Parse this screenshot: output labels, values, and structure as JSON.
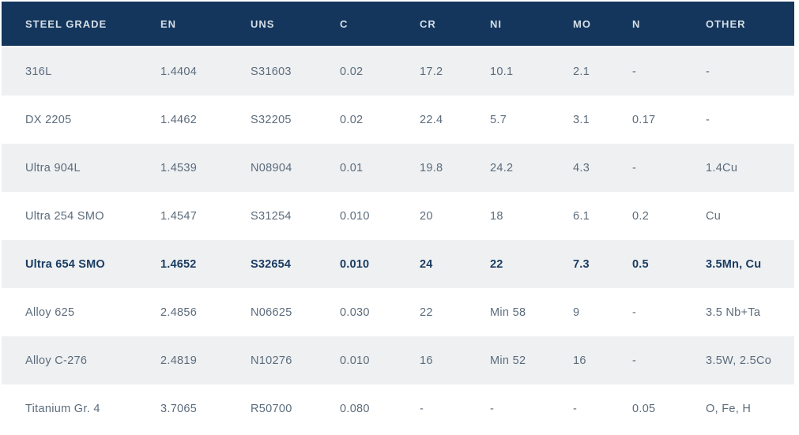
{
  "table": {
    "columns": [
      "STEEL GRADE",
      "EN",
      "UNS",
      "C",
      "CR",
      "NI",
      "MO",
      "N",
      "OTHER"
    ],
    "rows": [
      {
        "bold": false,
        "cells": [
          "316L",
          "1.4404",
          "S31603",
          "0.02",
          "17.2",
          "10.1",
          "2.1",
          "-",
          "-"
        ]
      },
      {
        "bold": false,
        "cells": [
          "DX 2205",
          "1.4462",
          "S32205",
          "0.02",
          "22.4",
          "5.7",
          "3.1",
          "0.17",
          "-"
        ]
      },
      {
        "bold": false,
        "cells": [
          "Ultra 904L",
          "1.4539",
          "N08904",
          "0.01",
          "19.8",
          "24.2",
          "4.3",
          "-",
          "1.4Cu"
        ]
      },
      {
        "bold": false,
        "cells": [
          "Ultra 254 SMO",
          "1.4547",
          "S31254",
          "0.010",
          "20",
          "18",
          "6.1",
          "0.2",
          "Cu"
        ]
      },
      {
        "bold": true,
        "cells": [
          "Ultra 654 SMO",
          "1.4652",
          "S32654",
          "0.010",
          "24",
          "22",
          "7.3",
          "0.5",
          "3.5Mn, Cu"
        ]
      },
      {
        "bold": false,
        "cells": [
          "Alloy 625",
          "2.4856",
          "N06625",
          "0.030",
          "22",
          "Min 58",
          "9",
          "-",
          "3.5 Nb+Ta"
        ]
      },
      {
        "bold": false,
        "cells": [
          "Alloy C-276",
          "2.4819",
          "N10276",
          "0.010",
          "16",
          "Min 52",
          "16",
          "-",
          "3.5W, 2.5Co"
        ]
      },
      {
        "bold": false,
        "cells": [
          "Titanium Gr. 4",
          "3.7065",
          "R50700",
          "0.080",
          "-",
          "-",
          "-",
          "0.05",
          "O, Fe, H"
        ]
      }
    ]
  },
  "colors": {
    "header_bg": "#14365c",
    "header_text": "#d6dee7",
    "row_alt_bg": "#eef0f2",
    "row_bg": "#ffffff",
    "cell_text": "#5c6c7c",
    "highlight_text": "#1b3c62",
    "separator": "#fbfcfc"
  }
}
